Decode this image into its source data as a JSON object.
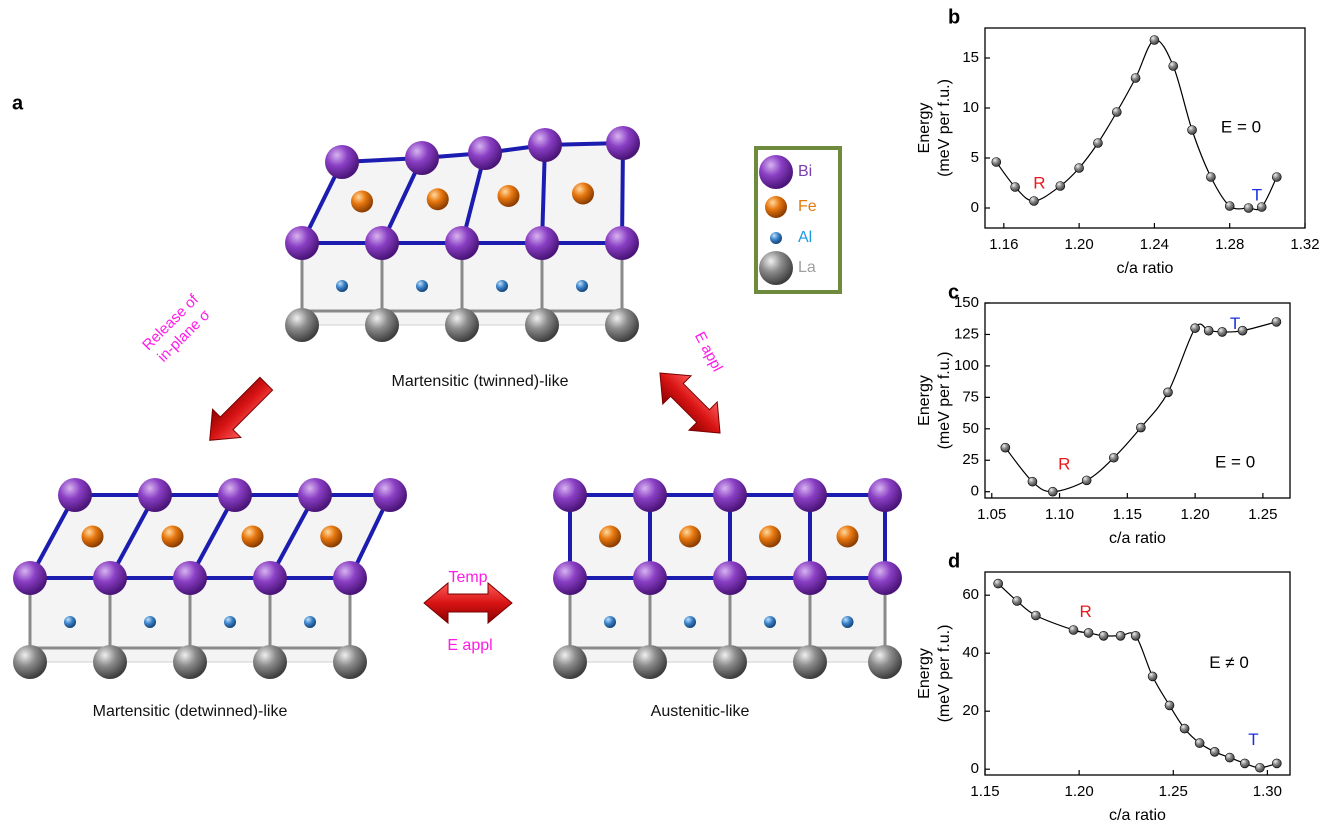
{
  "figure": {
    "panel_a": {
      "label": "a",
      "legend": [
        "Bi",
        "Fe",
        "Al",
        "La"
      ],
      "structures": [
        "Martensitic (twinned)-like",
        "Martensitic (detwinned)-like",
        "Austenitic-like"
      ],
      "release": [
        "Release of",
        "in-plane σ"
      ],
      "field_diagonal": "E appl",
      "temp": "Temp",
      "field_horizontal": "E appl"
    }
  },
  "chart_data": [
    {
      "type": "line",
      "panel": "b",
      "x": [
        1.156,
        1.166,
        1.176,
        1.19,
        1.2,
        1.21,
        1.22,
        1.23,
        1.24,
        1.25,
        1.26,
        1.27,
        1.28,
        1.29,
        1.297,
        1.305
      ],
      "values": [
        4.6,
        2.1,
        0.7,
        2.2,
        4.0,
        6.5,
        9.6,
        13.0,
        16.8,
        14.2,
        7.8,
        3.1,
        0.2,
        0.0,
        0.1,
        3.1
      ],
      "color": "#000000",
      "xlim": [
        1.15,
        1.32
      ],
      "xticks": [
        {
          "value": 1.16,
          "label": "1.16"
        },
        {
          "value": 1.2,
          "label": "1.20"
        },
        {
          "value": 1.24,
          "label": "1.24"
        },
        {
          "value": 1.28,
          "label": "1.28"
        },
        {
          "value": 1.32,
          "label": "1.32"
        }
      ],
      "ylim": [
        -2,
        18
      ],
      "yticks": [
        0,
        5,
        10,
        15
      ],
      "xlabel": "c/a ratio",
      "ylabel": [
        "Energy",
        "(meV per f.u.)"
      ],
      "annotations": [
        {
          "text": "R",
          "color": "#e8191e"
        },
        {
          "text": "T",
          "color": "#1a2fe0"
        },
        {
          "text": "E = 0",
          "color": "#000000"
        }
      ]
    },
    {
      "type": "line",
      "panel": "c",
      "x": [
        1.06,
        1.08,
        1.095,
        1.12,
        1.14,
        1.16,
        1.18,
        1.2,
        1.21,
        1.22,
        1.235,
        1.26
      ],
      "values": [
        35,
        8,
        0,
        9,
        27,
        51,
        79,
        130,
        128,
        127,
        128,
        135
      ],
      "color": "#000000",
      "xlim": [
        1.045,
        1.27
      ],
      "xticks": [
        {
          "value": 1.05,
          "label": "1.05"
        },
        {
          "value": 1.1,
          "label": "1.10"
        },
        {
          "value": 1.15,
          "label": "1.15"
        },
        {
          "value": 1.2,
          "label": "1.20"
        },
        {
          "value": 1.25,
          "label": "1.25"
        }
      ],
      "ylim": [
        -5,
        150
      ],
      "yticks": [
        0,
        25,
        50,
        75,
        100,
        125,
        150
      ],
      "xlabel": "c/a ratio",
      "ylabel": [
        "Energy",
        "(meV per f.u.)"
      ],
      "annotations": [
        {
          "text": "R",
          "color": "#e8191e"
        },
        {
          "text": "T",
          "color": "#1a2fe0"
        },
        {
          "text": "E = 0",
          "color": "#000000"
        }
      ]
    },
    {
      "type": "line",
      "panel": "d",
      "x": [
        1.157,
        1.167,
        1.177,
        1.197,
        1.205,
        1.213,
        1.222,
        1.23,
        1.239,
        1.248,
        1.256,
        1.264,
        1.272,
        1.28,
        1.288,
        1.296,
        1.305
      ],
      "values": [
        64,
        58,
        53,
        48,
        47,
        46,
        46,
        46,
        32,
        22,
        14,
        9,
        6,
        4,
        2,
        0.5,
        2
      ],
      "color": "#000000",
      "xlim": [
        1.15,
        1.312
      ],
      "xticks": [
        {
          "value": 1.15,
          "label": "1.15"
        },
        {
          "value": 1.2,
          "label": "1.20"
        },
        {
          "value": 1.25,
          "label": "1.25"
        },
        {
          "value": 1.3,
          "label": "1.30"
        }
      ],
      "ylim": [
        -2,
        68
      ],
      "yticks": [
        0,
        20,
        40,
        60
      ],
      "xlabel": "c/a ratio",
      "ylabel": [
        "Energy",
        "(meV per f.u.)"
      ],
      "annotations": [
        {
          "text": "R",
          "color": "#e8191e"
        },
        {
          "text": "T",
          "color": "#1a2fe0"
        },
        {
          "text": "E ≠ 0",
          "color": "#000000"
        }
      ]
    }
  ]
}
